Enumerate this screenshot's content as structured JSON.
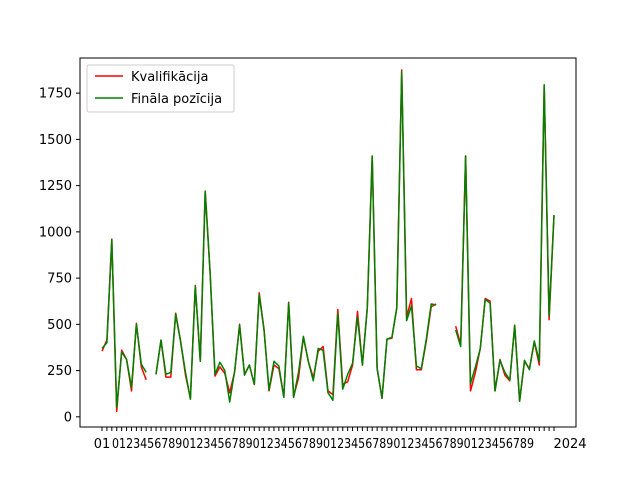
{
  "chart_data": {
    "type": "line",
    "title": "",
    "xlabel": "",
    "ylabel": "",
    "ylim": [
      -55,
      1940
    ],
    "yticks": [
      0,
      250,
      500,
      750,
      1000,
      1250,
      1500,
      1750
    ],
    "ytick_labels": [
      "0",
      "250",
      "500",
      "750",
      "1000",
      "1250",
      "1500",
      "1750"
    ],
    "x_first_label": "01",
    "x_last_label": "2024",
    "grid": false,
    "legend": {
      "position": "top-left",
      "entries": [
        "Kvalifikācija",
        "Fināla pozīcija"
      ]
    },
    "series": [
      {
        "name": "Kvalifikācija",
        "color": "#ff0000",
        "values": [
          355,
          415,
          960,
          30,
          360,
          310,
          140,
          505,
          270,
          200,
          null,
          230,
          415,
          215,
          215,
          560,
          410,
          225,
          100,
          710,
          300,
          1220,
          780,
          220,
          270,
          235,
          130,
          245,
          500,
          230,
          280,
          175,
          670,
          470,
          140,
          280,
          260,
          110,
          620,
          110,
          210,
          430,
          300,
          210,
          355,
          380,
          140,
          120,
          580,
          175,
          190,
          280,
          570,
          280,
          590,
          1410,
          260,
          100,
          420,
          425,
          590,
          1875,
          540,
          640,
          255,
          255,
          410,
          595,
          610,
          null,
          null,
          null,
          490,
          390,
          1410,
          140,
          240,
          370,
          640,
          625,
          140,
          310,
          225,
          195,
          495,
          85,
          300,
          260,
          405,
          280,
          1790,
          525,
          1090
        ]
      },
      {
        "name": "Fināla pozīcija",
        "color": "#008000",
        "values": [
          370,
          400,
          960,
          50,
          350,
          310,
          160,
          500,
          285,
          240,
          null,
          230,
          415,
          230,
          240,
          555,
          405,
          240,
          95,
          705,
          300,
          1220,
          780,
          230,
          295,
          250,
          80,
          250,
          495,
          225,
          280,
          175,
          660,
          465,
          145,
          300,
          275,
          105,
          615,
          105,
          240,
          435,
          300,
          195,
          370,
          360,
          130,
          90,
          560,
          150,
          230,
          290,
          540,
          280,
          590,
          1410,
          265,
          100,
          420,
          430,
          590,
          1865,
          520,
          600,
          275,
          260,
          420,
          610,
          605,
          null,
          null,
          null,
          470,
          380,
          1410,
          180,
          270,
          370,
          635,
          615,
          140,
          305,
          240,
          200,
          495,
          85,
          305,
          255,
          410,
          300,
          1795,
          545,
          1090
        ]
      }
    ]
  }
}
